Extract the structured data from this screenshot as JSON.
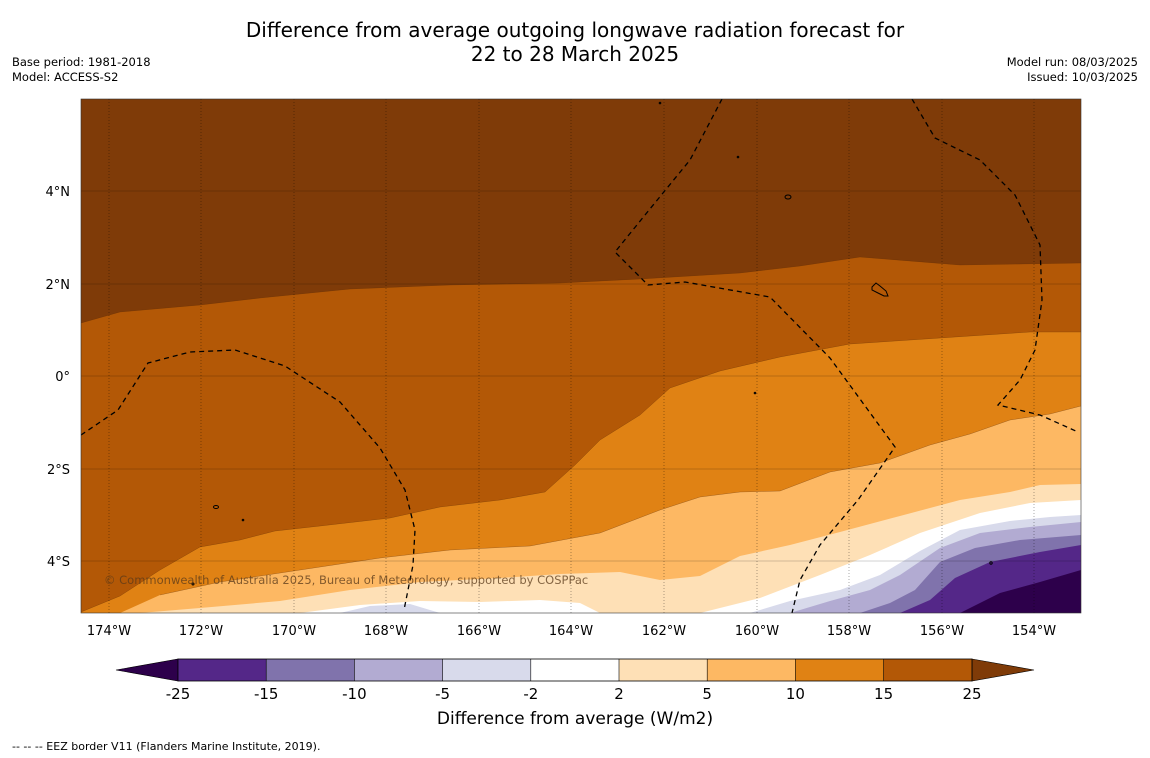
{
  "title": {
    "line1": "Difference from average outgoing longwave radiation forecast for",
    "line2": "22 to 28 March 2025"
  },
  "meta_left": {
    "base_period": "Base period: 1981-2018",
    "model": "Model: ACCESS-S2"
  },
  "meta_right": {
    "model_run": "Model run: 08/03/2025",
    "issued": "Issued: 10/03/2025"
  },
  "map": {
    "lat_labels": [
      "4°N",
      "2°N",
      "0°",
      "2°S",
      "4°S"
    ],
    "lon_labels": [
      "174°W",
      "172°W",
      "170°W",
      "168°W",
      "166°W",
      "164°W",
      "162°W",
      "160°W",
      "158°W",
      "156°W",
      "154°W"
    ],
    "copyright": "© Commonwealth of Australia 2025, Bureau of Meteorology, supported by COSPPac"
  },
  "colorbar": {
    "ticks": [
      "-25",
      "-15",
      "-10",
      "-5",
      "-2",
      "2",
      "5",
      "10",
      "15",
      "25"
    ],
    "colors": [
      "#2d004b",
      "#542788",
      "#8073ac",
      "#b2abd2",
      "#d8daeb",
      "#ffffff",
      "#fee0b6",
      "#fdb863",
      "#e08214",
      "#b35806",
      "#7f3b08"
    ],
    "label": "Difference from average (W/m2)"
  },
  "footnote": "--  --  -- EEZ border V11 (Flanders Marine Institute, 2019)."
}
